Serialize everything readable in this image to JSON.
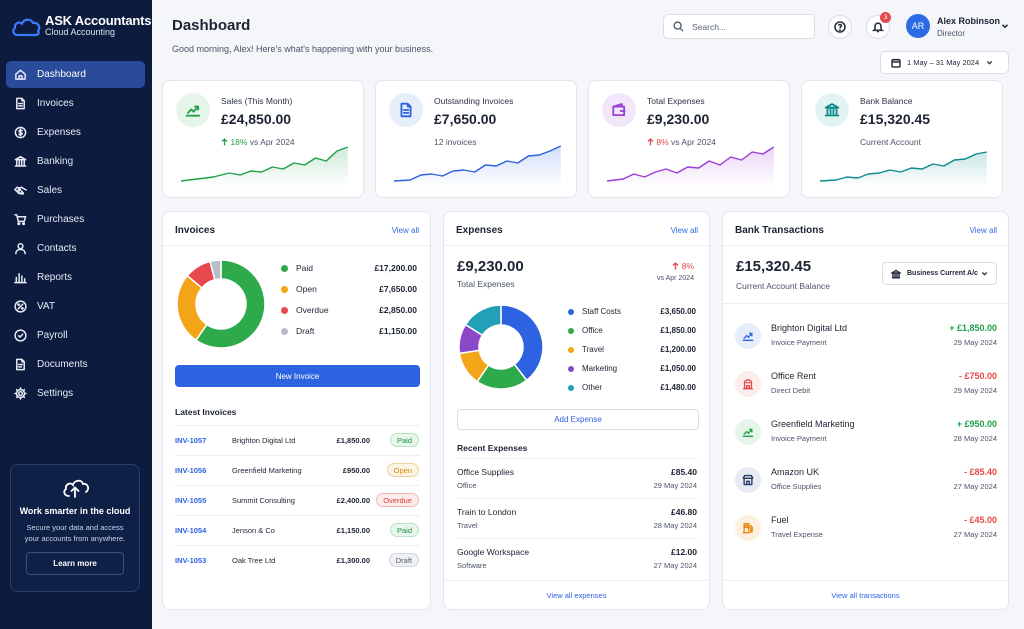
{
  "brand": {
    "name": "ASK Accountants",
    "tagline": "Cloud Accounting"
  },
  "sidebar": {
    "items": [
      {
        "label": "Dashboard",
        "icon": "home-icon",
        "active": true
      },
      {
        "label": "Invoices",
        "icon": "file-icon"
      },
      {
        "label": "Expenses",
        "icon": "coin-icon"
      },
      {
        "label": "Banking",
        "icon": "bank-icon"
      },
      {
        "label": "Sales",
        "icon": "handshake-icon"
      },
      {
        "label": "Purchases",
        "icon": "cart-icon"
      },
      {
        "label": "Contacts",
        "icon": "user-icon"
      },
      {
        "label": "Reports",
        "icon": "bar-chart-icon"
      },
      {
        "label": "VAT",
        "icon": "percent-icon"
      },
      {
        "label": "Payroll",
        "icon": "payroll-icon"
      },
      {
        "label": "Documents",
        "icon": "document-icon"
      },
      {
        "label": "Settings",
        "icon": "gear-icon"
      }
    ],
    "promo": {
      "title": "Work smarter in the cloud",
      "text": "Secure your data and access your accounts from anywhere.",
      "button": "Learn more"
    }
  },
  "header": {
    "title": "Dashboard",
    "greeting": "Good morning, Alex! Here's what's happening with your business.",
    "search_placeholder": "Search...",
    "notifications_count": "3",
    "user": {
      "initials": "AR",
      "name": "Alex Robinson",
      "role": "Director"
    },
    "date_range": "1 May – 31 May 2024"
  },
  "kpis": [
    {
      "label": "Sales (This Month)",
      "value": "£24,850.00",
      "delta": "18%",
      "delta_dir": "up",
      "delta_text": " vs Apr 2024",
      "icon": "trend-up-icon",
      "color": "#22a04b",
      "bg": "#e6f5ea"
    },
    {
      "label": "Outstanding Invoices",
      "value": "£7,650.00",
      "sub": "12 invoices",
      "icon": "file-icon",
      "color": "#2d63e0",
      "bg": "#e6edfb"
    },
    {
      "label": "Total Expenses",
      "value": "£9,230.00",
      "delta": "8%",
      "delta_dir": "up",
      "delta_text": " vs Apr 2024",
      "icon": "wallet-icon",
      "color": "#9b3fd6",
      "bg": "#f2e6fa"
    },
    {
      "label": "Bank Balance",
      "value": "£15,320.45",
      "sub": "Current Account",
      "icon": "bank-icon",
      "color": "#0f8c8c",
      "bg": "#e2f3f3"
    }
  ],
  "invoices": {
    "title": "Invoices",
    "view_all": "View all",
    "breakdown": [
      {
        "label": "Paid",
        "amount": "£17,200.00",
        "value": 17200,
        "color": "#2eaa4a"
      },
      {
        "label": "Open",
        "amount": "£7,650.00",
        "value": 7650,
        "color": "#f2a516"
      },
      {
        "label": "Overdue",
        "amount": "£2,850.00",
        "value": 2850,
        "color": "#e5484d"
      },
      {
        "label": "Draft",
        "amount": "£1,150.00",
        "value": 1150,
        "color": "#b9bcc4"
      }
    ],
    "new_button": "New Invoice",
    "latest_title": "Latest Invoices",
    "latest": [
      {
        "id": "INV-1057",
        "client": "Brighton Digital Ltd",
        "amount": "£1,850.00",
        "status": "Paid",
        "cls": "paid"
      },
      {
        "id": "INV-1056",
        "client": "Greenfield Marketing",
        "amount": "£950.00",
        "status": "Open",
        "cls": "open"
      },
      {
        "id": "INV-1055",
        "client": "Summit Consulting",
        "amount": "£2,400.00",
        "status": "Overdue",
        "cls": "overdue"
      },
      {
        "id": "INV-1054",
        "client": "Jenson & Co",
        "amount": "£1,150.00",
        "status": "Paid",
        "cls": "paid"
      },
      {
        "id": "INV-1053",
        "client": "Oak Tree Ltd",
        "amount": "£1,300.00",
        "status": "Draft",
        "cls": "draft"
      }
    ]
  },
  "expenses": {
    "title": "Expenses",
    "view_all": "View all",
    "total": "£9,230.00",
    "total_label": "Total Expenses",
    "delta": "8%",
    "delta_text": "vs Apr 2024",
    "breakdown": [
      {
        "label": "Staff Costs",
        "amount": "£3,650.00",
        "value": 3650,
        "color": "#2d63e0"
      },
      {
        "label": "Office",
        "amount": "£1,850.00",
        "value": 1850,
        "color": "#2eaa4a"
      },
      {
        "label": "Travel",
        "amount": "£1,200.00",
        "value": 1200,
        "color": "#f2a516"
      },
      {
        "label": "Marketing",
        "amount": "£1,050.00",
        "value": 1050,
        "color": "#8b49c9"
      },
      {
        "label": "Other",
        "amount": "£1,480.00",
        "value": 1480,
        "color": "#22a0b8"
      }
    ],
    "add_button": "Add Expense",
    "recent_title": "Recent Expenses",
    "recent": [
      {
        "name": "Office Supplies",
        "category": "Office",
        "amount": "£85.40",
        "date": "29 May 2024"
      },
      {
        "name": "Train to London",
        "category": "Travel",
        "amount": "£46.80",
        "date": "28 May 2024"
      },
      {
        "name": "Google Workspace",
        "category": "Software",
        "amount": "£12.00",
        "date": "27 May 2024"
      }
    ],
    "footer_link": "View all expenses"
  },
  "bank": {
    "title": "Bank Transactions",
    "view_all": "View all",
    "balance": "£15,320.45",
    "balance_label": "Current Account Balance",
    "account_select": "Business Current A/c",
    "transactions": [
      {
        "name": "Brighton Digital Ltd",
        "category": "Invoice Payment",
        "amount": "+ £1,850.00",
        "dir": "in",
        "date": "29 May 2024",
        "icon": "trend-up-icon",
        "color": "#2d63e0",
        "bg": "#e6edfb"
      },
      {
        "name": "Office Rent",
        "category": "Direct Debit",
        "amount": "- £750.00",
        "dir": "out",
        "date": "29 May 2024",
        "icon": "building-icon",
        "color": "#e5484d",
        "bg": "#fdecec"
      },
      {
        "name": "Greenfield Marketing",
        "category": "Invoice Payment",
        "amount": "+ £950.00",
        "dir": "in",
        "date": "28 May 2024",
        "icon": "trend-up-icon",
        "color": "#22a04b",
        "bg": "#e6f5ea"
      },
      {
        "name": "Amazon UK",
        "category": "Office Supplies",
        "amount": "- £85.40",
        "dir": "out",
        "date": "27 May 2024",
        "icon": "store-icon",
        "color": "#2a3a66",
        "bg": "#e8ebf2"
      },
      {
        "name": "Fuel",
        "category": "Travel Expense",
        "amount": "- £45.00",
        "dir": "out",
        "date": "27 May 2024",
        "icon": "fuel-icon",
        "color": "#e88a12",
        "bg": "#fdf0e0"
      }
    ],
    "footer_link": "View all transactions"
  }
}
